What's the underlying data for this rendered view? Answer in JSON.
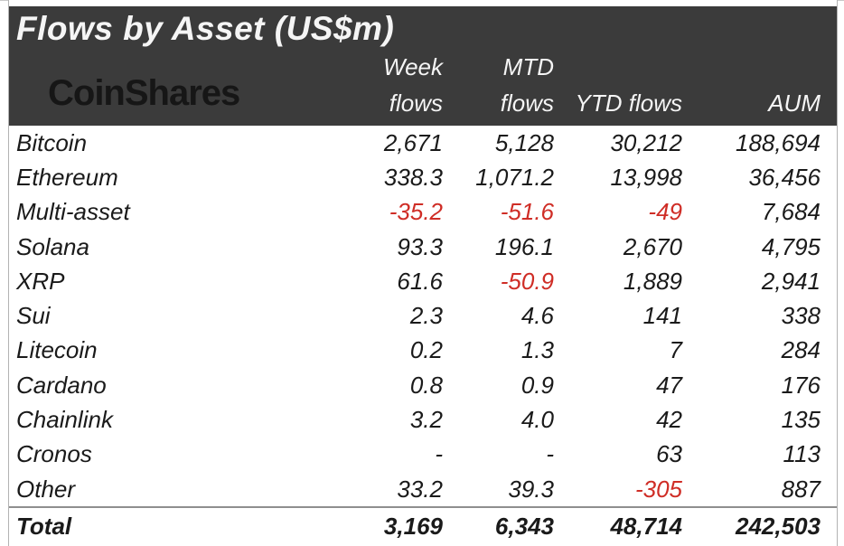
{
  "header": {
    "title": "Flows by Asset (US$m)",
    "logo": "CoinShares",
    "columns": [
      {
        "line1": "Week",
        "line2": "flows"
      },
      {
        "line1": "MTD",
        "line2": "flows"
      },
      {
        "line1": "",
        "line2": "YTD flows"
      },
      {
        "line1": "",
        "line2": "AUM"
      }
    ]
  },
  "table": {
    "rows": [
      {
        "asset": "Bitcoin",
        "week": "2,671",
        "mtd": "5,128",
        "ytd": "30,212",
        "aum": "188,694",
        "week_neg": false,
        "mtd_neg": false,
        "ytd_neg": false
      },
      {
        "asset": "Ethereum",
        "week": "338.3",
        "mtd": "1,071.2",
        "ytd": "13,998",
        "aum": "36,456",
        "week_neg": false,
        "mtd_neg": false,
        "ytd_neg": false
      },
      {
        "asset": "Multi-asset",
        "week": "-35.2",
        "mtd": "-51.6",
        "ytd": "-49",
        "aum": "7,684",
        "week_neg": true,
        "mtd_neg": true,
        "ytd_neg": true
      },
      {
        "asset": "Solana",
        "week": "93.3",
        "mtd": "196.1",
        "ytd": "2,670",
        "aum": "4,795",
        "week_neg": false,
        "mtd_neg": false,
        "ytd_neg": false
      },
      {
        "asset": "XRP",
        "week": "61.6",
        "mtd": "-50.9",
        "ytd": "1,889",
        "aum": "2,941",
        "week_neg": false,
        "mtd_neg": true,
        "ytd_neg": false
      },
      {
        "asset": "Sui",
        "week": "2.3",
        "mtd": "4.6",
        "ytd": "141",
        "aum": "338",
        "week_neg": false,
        "mtd_neg": false,
        "ytd_neg": false
      },
      {
        "asset": "Litecoin",
        "week": "0.2",
        "mtd": "1.3",
        "ytd": "7",
        "aum": "284",
        "week_neg": false,
        "mtd_neg": false,
        "ytd_neg": false
      },
      {
        "asset": "Cardano",
        "week": "0.8",
        "mtd": "0.9",
        "ytd": "47",
        "aum": "176",
        "week_neg": false,
        "mtd_neg": false,
        "ytd_neg": false
      },
      {
        "asset": "Chainlink",
        "week": "3.2",
        "mtd": "4.0",
        "ytd": "42",
        "aum": "135",
        "week_neg": false,
        "mtd_neg": false,
        "ytd_neg": false
      },
      {
        "asset": "Cronos",
        "week": "-",
        "mtd": "-",
        "ytd": "63",
        "aum": "113",
        "week_neg": false,
        "mtd_neg": false,
        "ytd_neg": false
      },
      {
        "asset": "Other",
        "week": "33.2",
        "mtd": "39.3",
        "ytd": "-305",
        "aum": "887",
        "week_neg": false,
        "mtd_neg": false,
        "ytd_neg": true
      }
    ],
    "total": {
      "asset": "Total",
      "week": "3,169",
      "mtd": "6,343",
      "ytd": "48,714",
      "aum": "242,503"
    }
  },
  "chart_data": {
    "type": "table",
    "title": "Flows by Asset (US$m)",
    "source": "CoinShares",
    "columns": [
      "Week flows",
      "MTD flows",
      "YTD flows",
      "AUM"
    ],
    "rows": [
      {
        "asset": "Bitcoin",
        "week_flows": 2671,
        "mtd_flows": 5128,
        "ytd_flows": 30212,
        "aum": 188694
      },
      {
        "asset": "Ethereum",
        "week_flows": 338.3,
        "mtd_flows": 1071.2,
        "ytd_flows": 13998,
        "aum": 36456
      },
      {
        "asset": "Multi-asset",
        "week_flows": -35.2,
        "mtd_flows": -51.6,
        "ytd_flows": -49,
        "aum": 7684
      },
      {
        "asset": "Solana",
        "week_flows": 93.3,
        "mtd_flows": 196.1,
        "ytd_flows": 2670,
        "aum": 4795
      },
      {
        "asset": "XRP",
        "week_flows": 61.6,
        "mtd_flows": -50.9,
        "ytd_flows": 1889,
        "aum": 2941
      },
      {
        "asset": "Sui",
        "week_flows": 2.3,
        "mtd_flows": 4.6,
        "ytd_flows": 141,
        "aum": 338
      },
      {
        "asset": "Litecoin",
        "week_flows": 0.2,
        "mtd_flows": 1.3,
        "ytd_flows": 7,
        "aum": 284
      },
      {
        "asset": "Cardano",
        "week_flows": 0.8,
        "mtd_flows": 0.9,
        "ytd_flows": 47,
        "aum": 176
      },
      {
        "asset": "Chainlink",
        "week_flows": 3.2,
        "mtd_flows": 4.0,
        "ytd_flows": 42,
        "aum": 135
      },
      {
        "asset": "Cronos",
        "week_flows": null,
        "mtd_flows": null,
        "ytd_flows": 63,
        "aum": 113
      },
      {
        "asset": "Other",
        "week_flows": 33.2,
        "mtd_flows": 39.3,
        "ytd_flows": -305,
        "aum": 887
      }
    ],
    "total": {
      "asset": "Total",
      "week_flows": 3169,
      "mtd_flows": 6343,
      "ytd_flows": 48714,
      "aum": 242503
    }
  },
  "colors": {
    "header_bg": "#3b3b3b",
    "header_text": "#f5f5f5",
    "logo_text": "#161616",
    "body_text": "#1a1a1a",
    "negative": "#cf2d26",
    "separator": "#8f8f8f",
    "border": "#b3b3b3"
  }
}
